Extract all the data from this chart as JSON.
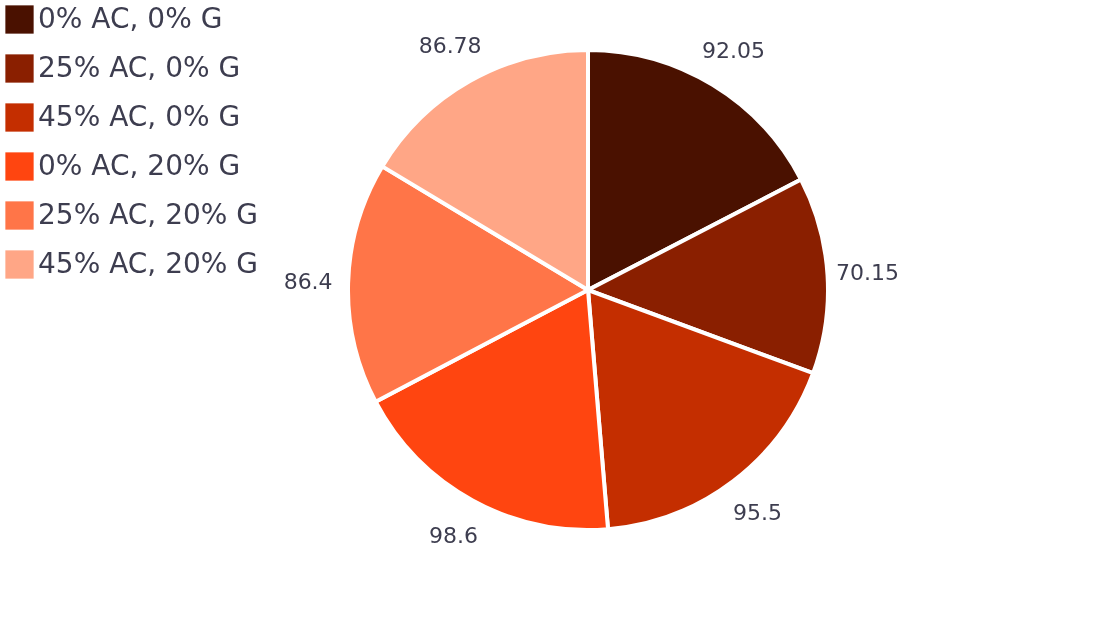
{
  "chart_data": {
    "type": "pie",
    "categories": [
      "0% AC, 0% G",
      "25% AC, 0% G",
      "45% AC, 0% G",
      "0% AC, 20% G",
      "25% AC, 20% G",
      "45% AC, 20% G"
    ],
    "values": [
      92.05,
      70.15,
      95.5,
      98.6,
      86.4,
      86.78
    ],
    "colors": [
      "#4a1100",
      "#8a1f00",
      "#c42e00",
      "#ff4510",
      "#ff7548",
      "#ffa686"
    ],
    "data_labels": true,
    "legend": "left"
  }
}
